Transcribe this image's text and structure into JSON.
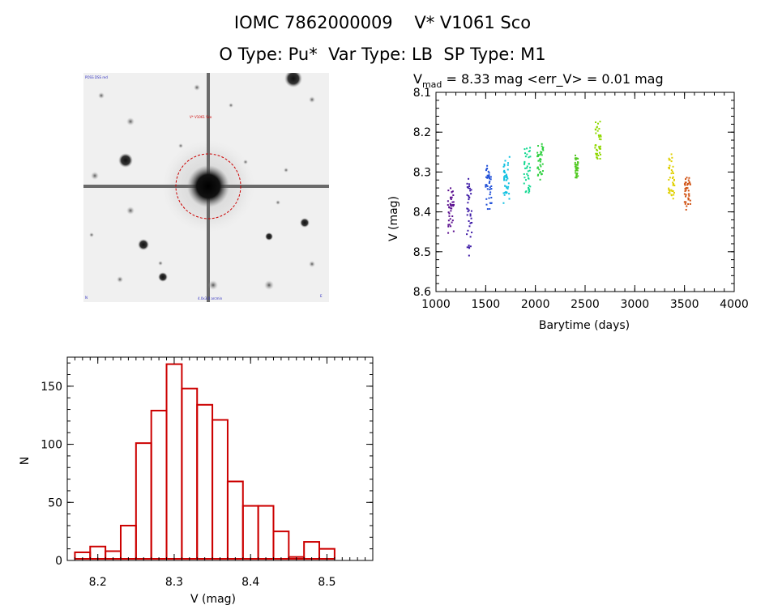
{
  "header": {
    "title_line1": "IOMC 7862000009    V* V1061 Sco",
    "title_line2": "O Type: Pu*  Var Type: LB  SP Type: M1"
  },
  "image_panel": {
    "target_label": "V* V1061 Sco",
    "corner_top_left": "POSS DSS red",
    "corner_bottom_left": "N",
    "corner_bottom_center": "4.0x3.0 arcmin",
    "corner_bottom_right": "E",
    "circle_color": "#cc0000"
  },
  "chart_data": [
    {
      "type": "scatter",
      "title_prefix": "V",
      "title_subscript": "mad",
      "title_rest": " = 8.33 mag <err_V> = 0.01 mag",
      "xlabel": "Barytime (days)",
      "ylabel": "V (mag)",
      "xlim": [
        1000,
        4000
      ],
      "ylim": [
        8.6,
        8.1
      ],
      "xticks": [
        "1000",
        "1500",
        "2000",
        "2500",
        "3000",
        "3500",
        "4000"
      ],
      "yticks": [
        "8.1",
        "8.2",
        "8.3",
        "8.4",
        "8.5",
        "8.6"
      ],
      "color_map": "rainbow by time",
      "segments": [
        {
          "x": [
            1120,
            1180
          ],
          "y": [
            8.33,
            8.46
          ],
          "color": "#5b0f8f"
        },
        {
          "x": [
            1310,
            1360
          ],
          "y": [
            8.31,
            8.52
          ],
          "color": "#3d1aa6"
        },
        {
          "x": [
            1500,
            1560
          ],
          "y": [
            8.27,
            8.4
          ],
          "color": "#1f4fd8"
        },
        {
          "x": [
            1680,
            1740
          ],
          "y": [
            8.26,
            8.39
          ],
          "color": "#10c0e0"
        },
        {
          "x": [
            1880,
            1950
          ],
          "y": [
            8.23,
            8.37
          ],
          "color": "#10d890"
        },
        {
          "x": [
            2020,
            2080
          ],
          "y": [
            8.22,
            8.33
          ],
          "color": "#30d040"
        },
        {
          "x": [
            2400,
            2430
          ],
          "y": [
            8.25,
            8.32
          ],
          "color": "#50c820"
        },
        {
          "x": [
            2600,
            2660
          ],
          "y": [
            8.17,
            8.28
          ],
          "color": "#8fd800"
        },
        {
          "x": [
            3340,
            3400
          ],
          "y": [
            8.25,
            8.38
          ],
          "color": "#e0d000"
        },
        {
          "x": [
            3500,
            3560
          ],
          "y": [
            8.31,
            8.4
          ],
          "color": "#d05010"
        }
      ]
    },
    {
      "type": "bar",
      "histogram": true,
      "xlabel": "V (mag)",
      "ylabel": "N",
      "xlim": [
        8.16,
        8.56
      ],
      "ylim": [
        0,
        175
      ],
      "xticks": [
        "8.2",
        "8.3",
        "8.4",
        "8.5"
      ],
      "yticks": [
        "0",
        "50",
        "100",
        "150"
      ],
      "bin_width": 0.02,
      "bin_starts": [
        8.17,
        8.19,
        8.21,
        8.23,
        8.25,
        8.27,
        8.29,
        8.31,
        8.33,
        8.35,
        8.37,
        8.39,
        8.41,
        8.43,
        8.45,
        8.47,
        8.49,
        8.51
      ],
      "values": [
        7,
        12,
        8,
        30,
        101,
        129,
        169,
        148,
        134,
        121,
        68,
        47,
        47,
        25,
        3,
        16,
        10,
        0
      ],
      "bar_color": "#cc0000"
    }
  ]
}
